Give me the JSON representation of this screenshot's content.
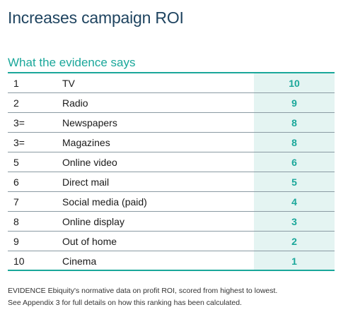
{
  "title": "Increases campaign ROI",
  "section_heading": "What the evidence says",
  "rows": [
    {
      "rank": "1",
      "medium": "TV",
      "score": "10"
    },
    {
      "rank": "2",
      "medium": "Radio",
      "score": "9"
    },
    {
      "rank": "3=",
      "medium": "Newspapers",
      "score": "8"
    },
    {
      "rank": "3=",
      "medium": "Magazines",
      "score": "8"
    },
    {
      "rank": "5",
      "medium": "Online video",
      "score": "6"
    },
    {
      "rank": "6",
      "medium": "Direct mail",
      "score": "5"
    },
    {
      "rank": "7",
      "medium": "Social media (paid)",
      "score": "4"
    },
    {
      "rank": "8",
      "medium": "Online display",
      "score": "3"
    },
    {
      "rank": "9",
      "medium": "Out of home",
      "score": "2"
    },
    {
      "rank": "10",
      "medium": "Cinema",
      "score": "1"
    }
  ],
  "footnote": {
    "line1": "EVIDENCE Ebiquity's normative data on profit ROI, scored from highest to lowest.",
    "line2": "See Appendix 3 for full details on how this ranking has been calculated."
  },
  "colors": {
    "title": "#1f4460",
    "accent": "#1aa79a",
    "score_background": "#e4f4f2"
  }
}
